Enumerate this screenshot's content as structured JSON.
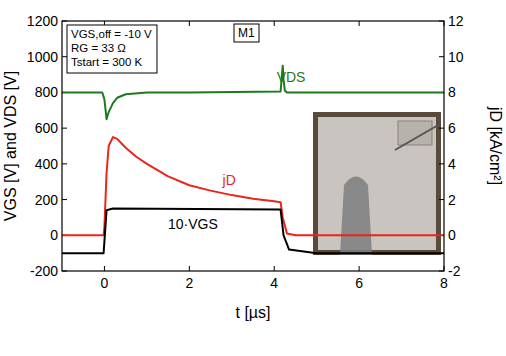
{
  "chart_data": {
    "type": "line",
    "x_label": "t [µs]",
    "y_label": "VGS [V] and VDS [V]",
    "y2_label": "jD [kA/cm²]",
    "xlim": [
      -1,
      8
    ],
    "xticks": [
      0,
      2,
      4,
      6,
      8
    ],
    "ylim": [
      -200,
      1200
    ],
    "yticks": [
      -200,
      0,
      200,
      400,
      600,
      800,
      1000,
      1200
    ],
    "y2lim": [
      -2,
      12
    ],
    "y2ticks": [
      -2,
      0,
      2,
      4,
      6,
      8,
      10,
      12
    ],
    "grid": false,
    "annotations": [
      "VGS,off = -10 V",
      "RG = 33 Ω",
      "Tstart = 300 K",
      "M1"
    ],
    "series": [
      {
        "name": "VDS",
        "color": "#1f7a1f",
        "axis": "y",
        "x": [
          -1,
          -0.05,
          0,
          0.05,
          0.1,
          0.2,
          0.3,
          0.5,
          1,
          2,
          4.15,
          4.2,
          4.22,
          4.25,
          4.3,
          5,
          8
        ],
        "values": [
          800,
          800,
          760,
          650,
          690,
          740,
          770,
          790,
          800,
          800,
          805,
          950,
          870,
          810,
          800,
          800,
          800
        ]
      },
      {
        "name": "jD",
        "color": "#e8261a",
        "axis": "y2",
        "x": [
          -1,
          -0.02,
          0,
          0.05,
          0.1,
          0.2,
          0.3,
          0.5,
          0.75,
          1,
          1.5,
          2,
          2.5,
          3,
          3.5,
          4,
          4.15,
          4.2,
          4.3,
          4.5,
          8
        ],
        "values": [
          0,
          0,
          0.5,
          3.5,
          5.0,
          5.5,
          5.4,
          4.9,
          4.4,
          4.0,
          3.3,
          2.8,
          2.5,
          2.25,
          2.05,
          1.9,
          1.85,
          1.0,
          0.1,
          0,
          0
        ]
      },
      {
        "name": "10·VGS",
        "color": "#000000",
        "axis": "y",
        "x": [
          -1,
          -0.02,
          0.05,
          0.2,
          4.15,
          4.22,
          4.35,
          5,
          8
        ],
        "values": [
          -100,
          -100,
          140,
          150,
          145,
          0,
          -80,
          -100,
          -100
        ]
      }
    ]
  }
}
